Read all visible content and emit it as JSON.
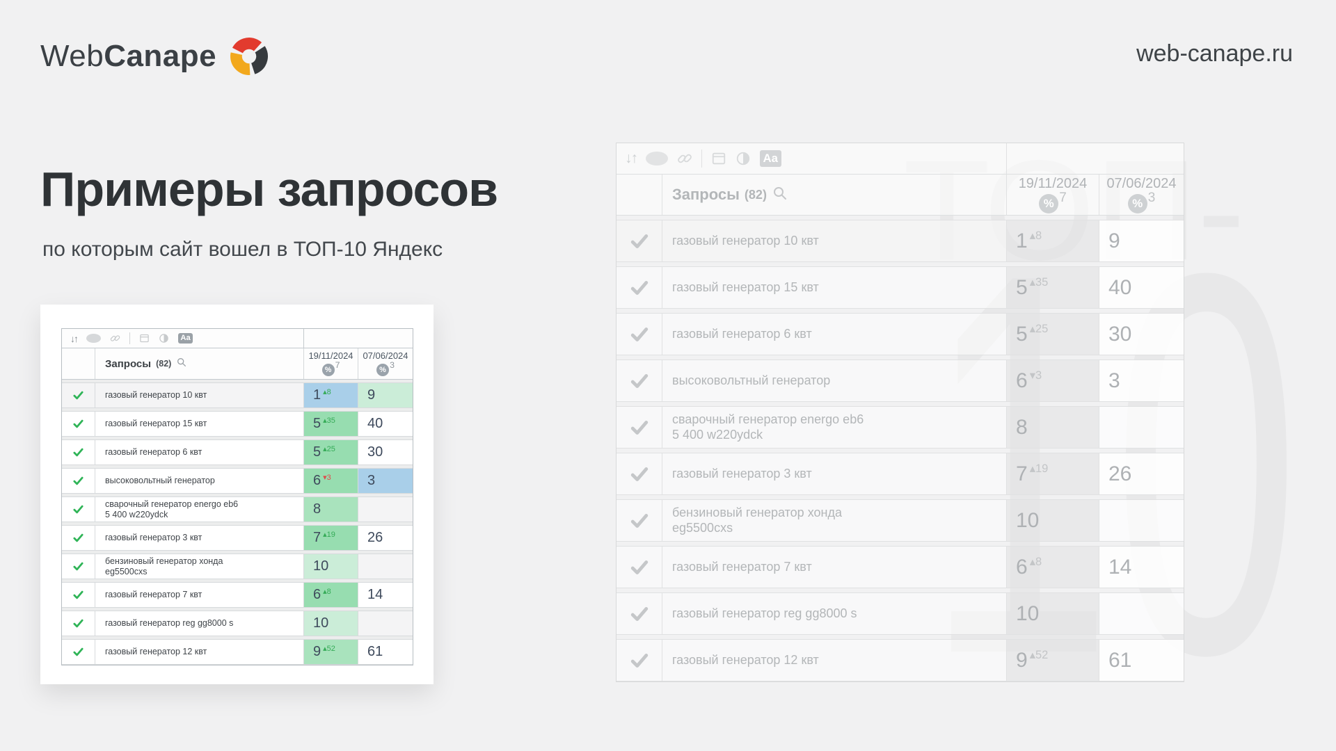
{
  "page": {
    "background": "#f1f1f2"
  },
  "header": {
    "site_url": "web-canape.ru"
  },
  "logo": {
    "part1": "Web",
    "part2": "Canape",
    "colors": {
      "text": "#3b4045",
      "red": "#e23b2e",
      "dark": "#363a3e",
      "yellow": "#f2a81d"
    }
  },
  "heading": {
    "title": "Примеры запросов",
    "subtitle": "по которым сайт вошел в ТОП-10 Яндекс"
  },
  "watermark": {
    "line1": "ТОП-",
    "line2": "10",
    "color": "#e8e8e9"
  },
  "table": {
    "toolbar": {
      "icons": [
        "sort-icon",
        "oval-icon",
        "link-icon",
        "divider",
        "panel-icon",
        "contrast-icon",
        "text-format-icon"
      ]
    },
    "header": {
      "queries_label": "Запросы",
      "queries_count": "(82)",
      "search_icon": "magnifier-icon",
      "columns": [
        {
          "date": "19/11/2024",
          "badge_icon": "percent-icon",
          "badge_value": "7"
        },
        {
          "date": "07/06/2024",
          "badge_icon": "percent-icon",
          "badge_value": "3"
        }
      ]
    },
    "rows": [
      {
        "query": "газовый генератор 10 квт",
        "v1": "1",
        "delta": "8",
        "delta_dir": "up",
        "v1_bg": "blue",
        "v2": "9",
        "v2_bg": "green_light",
        "highlight": true
      },
      {
        "query": "газовый генератор 15 квт",
        "v1": "5",
        "delta": "35",
        "delta_dir": "up",
        "v1_bg": "green",
        "v2": "40",
        "v2_bg": "white"
      },
      {
        "query": "газовый генератор 6 квт",
        "v1": "5",
        "delta": "25",
        "delta_dir": "up",
        "v1_bg": "green",
        "v2": "30",
        "v2_bg": "white"
      },
      {
        "query": "высоковольтный генератор",
        "v1": "6",
        "delta": "3",
        "delta_dir": "down",
        "v1_bg": "green",
        "v2": "3",
        "v2_bg": "blue"
      },
      {
        "query": "сварочный генератор energo eb6\n5 400 w220ydck",
        "v1": "8",
        "delta": "",
        "delta_dir": "",
        "v1_bg": "green_mid",
        "v2": "",
        "v2_bg": "empty"
      },
      {
        "query": "газовый генератор 3 квт",
        "v1": "7",
        "delta": "19",
        "delta_dir": "up",
        "v1_bg": "green",
        "v2": "26",
        "v2_bg": "white"
      },
      {
        "query": "бензиновый генератор хонда\neg5500cxs",
        "v1": "10",
        "delta": "",
        "delta_dir": "",
        "v1_bg": "green_light",
        "v2": "",
        "v2_bg": "empty"
      },
      {
        "query": "газовый генератор 7 квт",
        "v1": "6",
        "delta": "8",
        "delta_dir": "up",
        "v1_bg": "green",
        "v2": "14",
        "v2_bg": "white"
      },
      {
        "query": "газовый генератор reg gg8000 s",
        "v1": "10",
        "delta": "",
        "delta_dir": "",
        "v1_bg": "green_light",
        "v2": "",
        "v2_bg": "empty"
      },
      {
        "query": "газовый генератор 12 квт",
        "v1": "9",
        "delta": "52",
        "delta_dir": "up",
        "v1_bg": "green_mid",
        "v2": "61",
        "v2_bg": "white"
      }
    ]
  },
  "colors": {
    "cell_blue": "#a9cfe9",
    "cell_green": "#97ddb0",
    "cell_green_mid": "#a9e3bd",
    "cell_green_light": "#cbedd8",
    "cell_white": "#ffffff",
    "cell_empty": "#f4f4f5",
    "delta_up": "#35ab57",
    "delta_down": "#e04b4b",
    "check": "#2fb457"
  }
}
